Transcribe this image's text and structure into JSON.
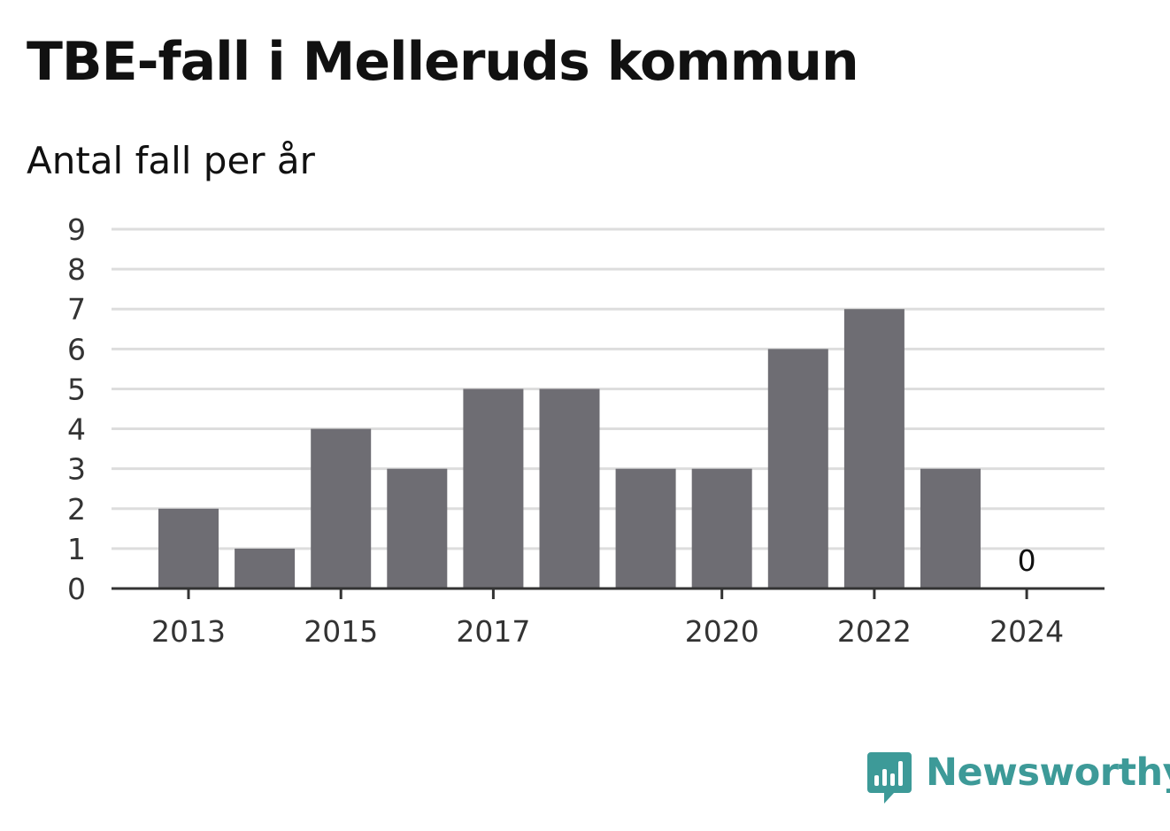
{
  "header": {
    "title": "TBE-fall i Melleruds kommun",
    "subtitle": "Antal fall per år"
  },
  "chart_data": {
    "type": "bar",
    "title": "TBE-fall i Melleruds kommun",
    "subtitle": "Antal fall per år",
    "categories": [
      "2013",
      "2014",
      "2015",
      "2016",
      "2017",
      "2018",
      "2019",
      "2020",
      "2021",
      "2022",
      "2023",
      "2024"
    ],
    "x_tick_labels": [
      "2013",
      "",
      "2015",
      "",
      "2017",
      "",
      "",
      "2020",
      "",
      "2022",
      "",
      "2024"
    ],
    "values": [
      2,
      1,
      4,
      3,
      5,
      5,
      3,
      3,
      6,
      7,
      3,
      0
    ],
    "value_annotations": [
      {
        "category": "2024",
        "text": "0"
      }
    ],
    "y_ticks": [
      0,
      1,
      2,
      3,
      4,
      5,
      6,
      7,
      8,
      9
    ],
    "ylim": [
      0,
      9
    ],
    "xlabel": "",
    "ylabel": "",
    "grid": true,
    "bar_color": "#6e6d73",
    "grid_color": "#dddddd",
    "axis_color": "#333333"
  },
  "branding": {
    "logo_text": "Newsworthy",
    "logo_icon": "newsworthy-bar-chart-icon",
    "logo_color": "#3d9a98"
  }
}
